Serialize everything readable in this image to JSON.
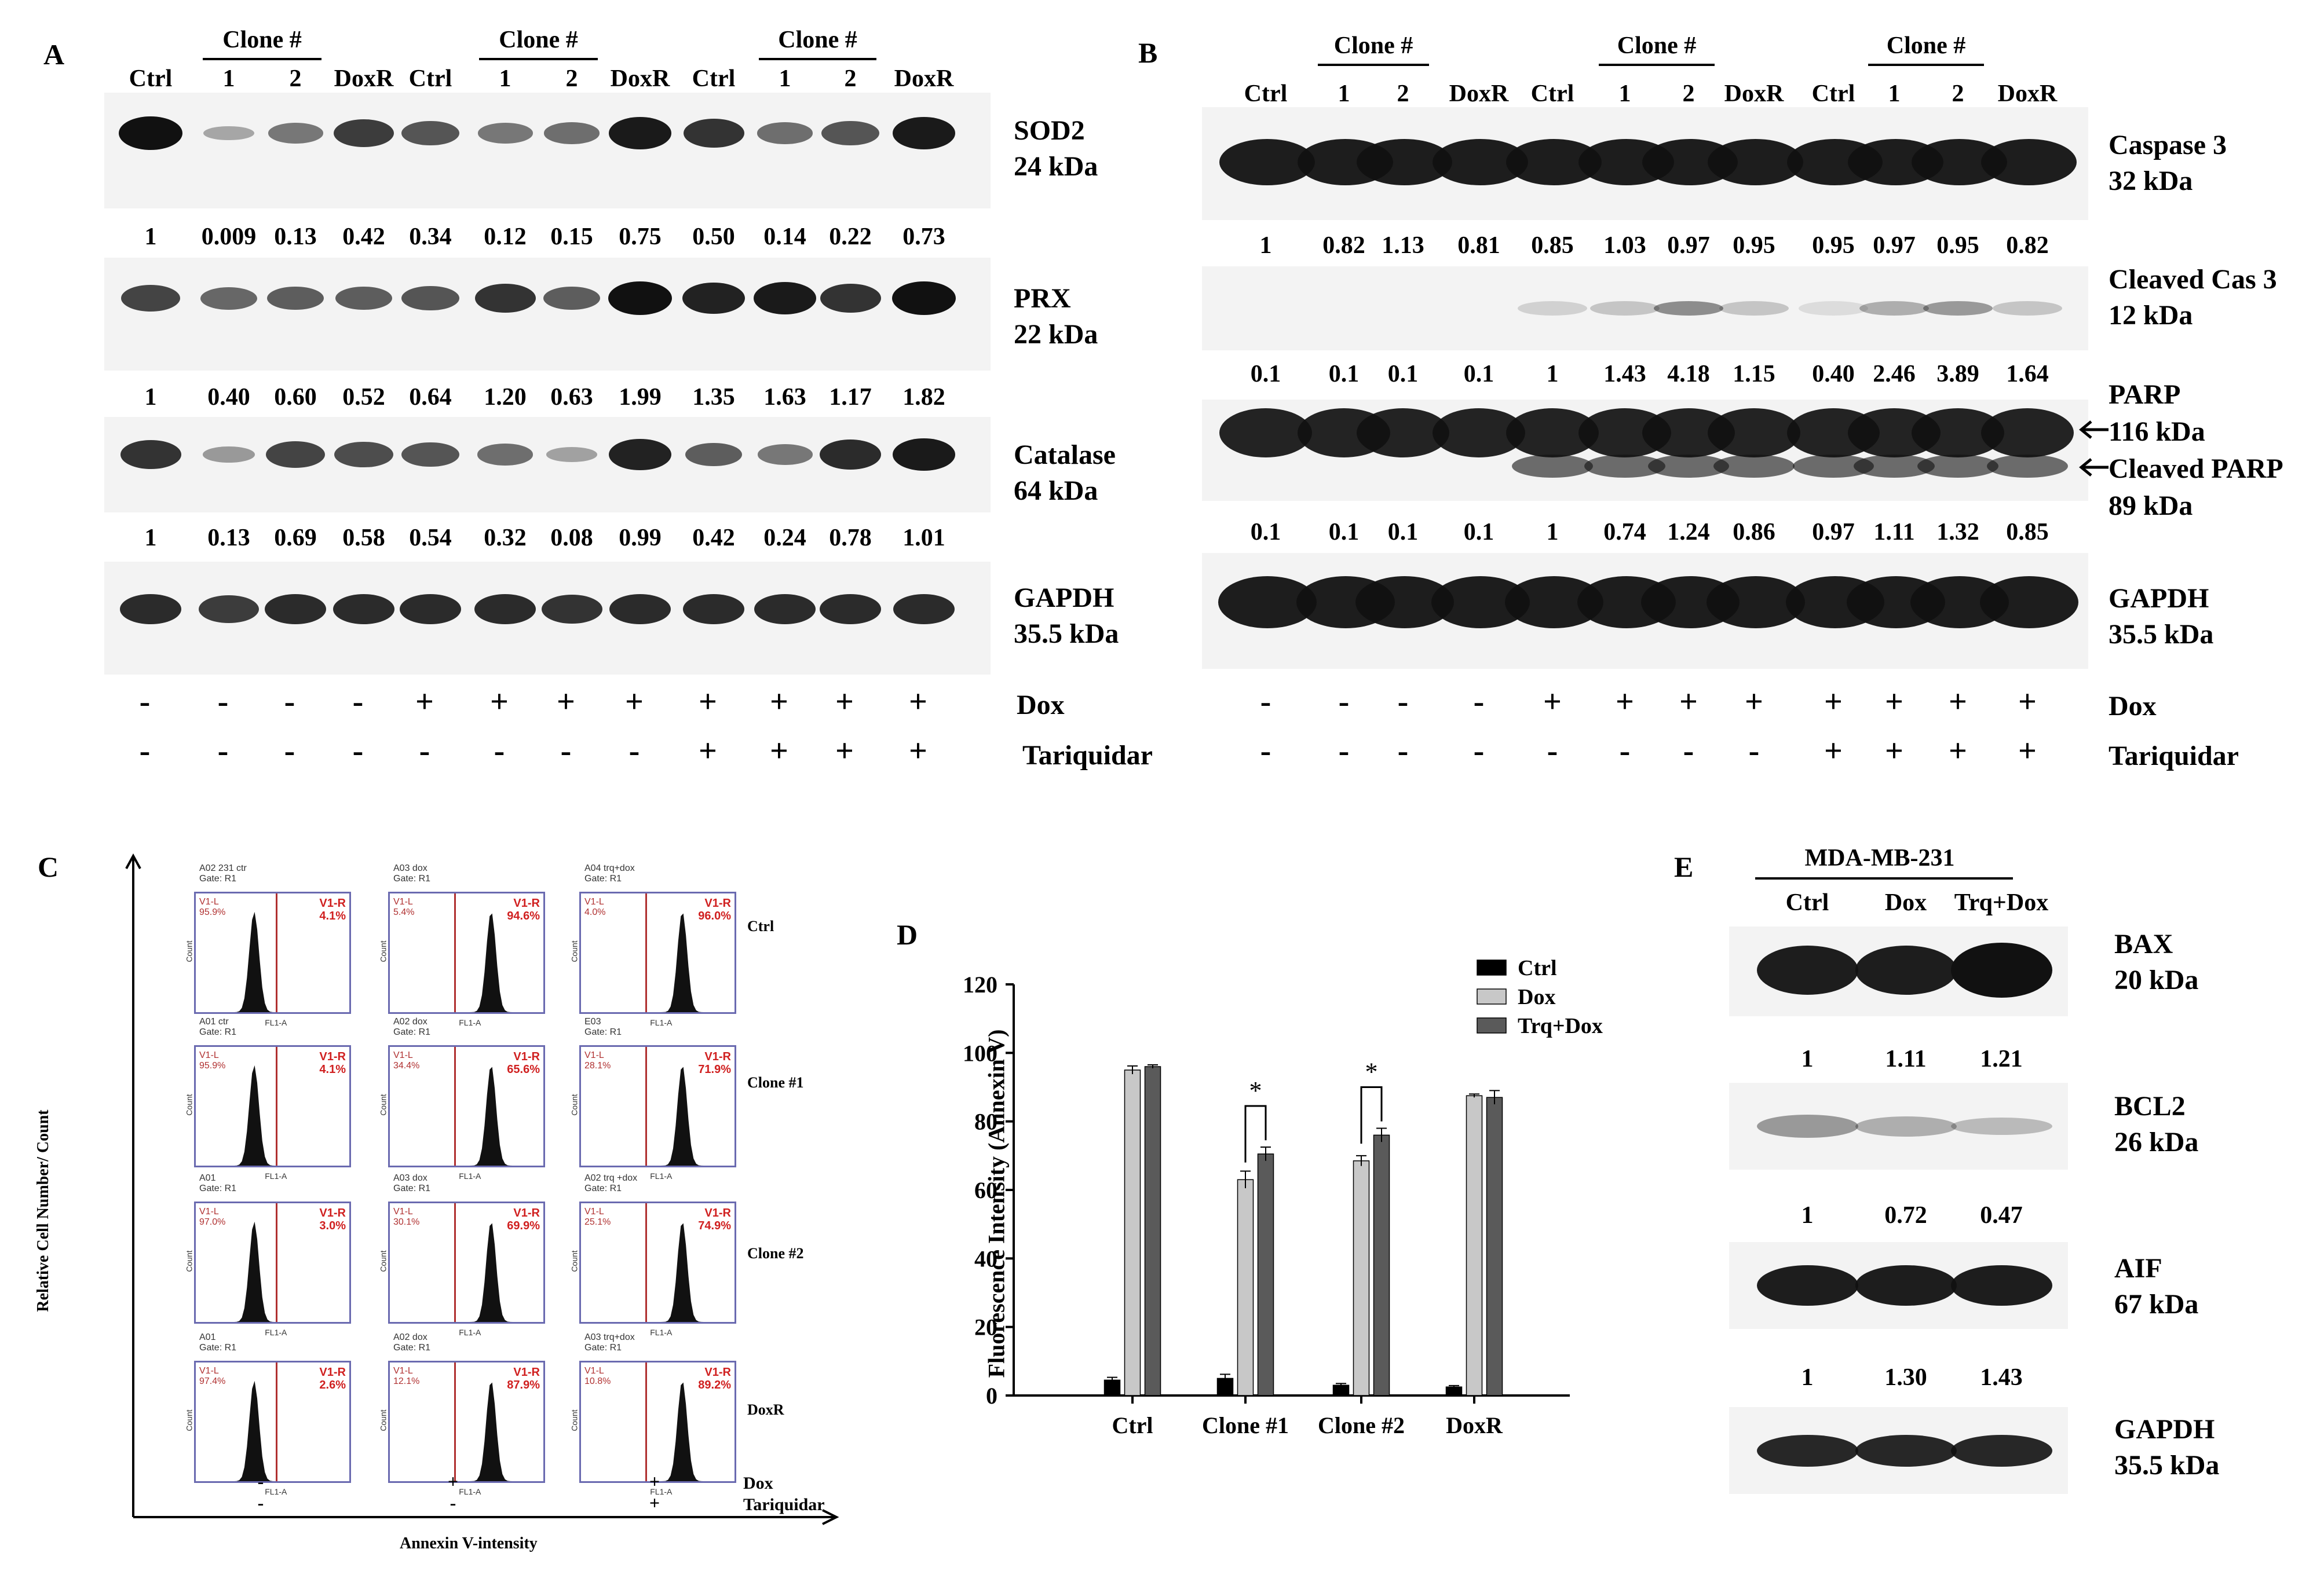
{
  "panelA": {
    "label": "A",
    "header": [
      "Ctrl",
      "1",
      "2",
      "DoxR",
      "Ctrl",
      "1",
      "2",
      "DoxR",
      "Ctrl",
      "1",
      "2",
      "DoxR"
    ],
    "clone_label": "Clone #",
    "markers": [
      {
        "name": "SOD2",
        "kda": "24  kDa",
        "values": [
          "1",
          "0.009",
          "0.13",
          "0.42",
          "0.34",
          "0.12",
          "0.15",
          "0.75",
          "0.50",
          "0.14",
          "0.22",
          "0.73"
        ]
      },
      {
        "name": "PRX",
        "kda": "22  kDa",
        "values": [
          "1",
          "0.40",
          "0.60",
          "0.52",
          "0.64",
          "1.20",
          "0.63",
          "1.99",
          "1.35",
          "1.63",
          "1.17",
          "1.82"
        ]
      },
      {
        "name": "Catalase",
        "kda": "64 kDa",
        "values": [
          "1",
          "0.13",
          "0.69",
          "0.58",
          "0.54",
          "0.32",
          "0.08",
          "0.99",
          "0.42",
          "0.24",
          "0.78",
          "1.01"
        ]
      },
      {
        "name": "GAPDH",
        "kda": "35.5 kDa",
        "values": []
      }
    ],
    "dox_label": "Dox",
    "trq_label": "Tariquidar",
    "dox": [
      "-",
      "-",
      "-",
      "-",
      "+",
      "+",
      "+",
      "+",
      "+",
      "+",
      "+",
      "+"
    ],
    "trq": [
      "-",
      "-",
      "-",
      "-",
      "-",
      "-",
      "-",
      "-",
      "+",
      "+",
      "+",
      "+"
    ]
  },
  "panelB": {
    "label": "B",
    "header": [
      "Ctrl",
      "1",
      "2",
      "DoxR",
      "Ctrl",
      "1",
      "2",
      "DoxR",
      "Ctrl",
      "1",
      "2",
      "DoxR"
    ],
    "clone_label": "Clone #",
    "casp3": {
      "name": "Caspase 3",
      "kda": "32 kDa",
      "values": [
        "1",
        "0.82",
        "1.13",
        "0.81",
        "0.85",
        "1.03",
        "0.97",
        "0.95",
        "0.95",
        "0.97",
        "0.95",
        "0.82"
      ]
    },
    "clcas3": {
      "name": "Cleaved Cas 3",
      "kda": "12 kDa",
      "values": [
        "0.1",
        "0.1",
        "0.1",
        "0.1",
        "1",
        "1.43",
        "4.18",
        "1.15",
        "0.40",
        "2.46",
        "3.89",
        "1.64"
      ]
    },
    "parp": {
      "name": "PARP",
      "kda116": "116 kDa",
      "cleaved": "Cleaved PARP",
      "kda89": "89 kDa",
      "values": [
        "0.1",
        "0.1",
        "0.1",
        "0.1",
        "1",
        "0.74",
        "1.24",
        "0.86",
        "0.97",
        "1.11",
        "1.32",
        "0.85"
      ]
    },
    "gapdh": {
      "name": "GAPDH",
      "kda": "35.5 kDa"
    },
    "dox_label": "Dox",
    "trq_label": "Tariquidar",
    "dox": [
      "-",
      "-",
      "-",
      "-",
      "+",
      "+",
      "+",
      "+",
      "+",
      "+",
      "+",
      "+"
    ],
    "trq": [
      "-",
      "-",
      "-",
      "-",
      "-",
      "-",
      "-",
      "-",
      "+",
      "+",
      "+",
      "+"
    ]
  },
  "panelC": {
    "label": "C",
    "ylabel": "Relative Cell Number/ Count",
    "xlabel": "Annexin V-intensity",
    "rows": [
      "Ctrl",
      "Clone #1",
      "Clone #2",
      "DoxR"
    ],
    "headers": [
      [
        "A02 231 ctr\nGate: R1",
        "A03 dox\nGate: R1",
        "A04 trq+dox\nGate: R1"
      ],
      [
        "A01 ctr\nGate: R1",
        "A02 dox\nGate: R1",
        "E03\nGate: R1"
      ],
      [
        "A01\nGate: R1",
        "A03 dox\nGate: R1",
        "A02 trq +dox\nGate: R1"
      ],
      [
        "A01\nGate: R1",
        "A02 dox\nGate: R1",
        "A03 trq+dox\nGate: R1"
      ]
    ],
    "left_pct": [
      [
        "95.9%",
        "5.4%",
        "4.0%"
      ],
      [
        "95.9%",
        "34.4%",
        "28.1%"
      ],
      [
        "97.0%",
        "30.1%",
        "25.1%"
      ],
      [
        "97.4%",
        "12.1%",
        "10.8%"
      ]
    ],
    "right_pct": [
      [
        "4.1%",
        "94.6%",
        "96.0%"
      ],
      [
        "4.1%",
        "65.6%",
        "71.9%"
      ],
      [
        "3.0%",
        "69.9%",
        "74.9%"
      ],
      [
        "2.6%",
        "87.9%",
        "89.2%"
      ]
    ],
    "gate_label": "V1-R",
    "left_label": "V1-L",
    "axis_x": "FL1-A",
    "axis_y": "Count",
    "dox_label": "Dox",
    "trq_label": "Tariquidar",
    "dox": [
      "-",
      "+",
      "+"
    ],
    "trq": [
      "-",
      "-",
      "+"
    ]
  },
  "panelD": {
    "label": "D",
    "chart_data": {
      "type": "bar",
      "categories": [
        "Ctrl",
        "Clone #1",
        "Clone #2",
        "DoxR"
      ],
      "series": [
        {
          "name": "Ctrl",
          "values": [
            4.5,
            5.0,
            3.0,
            2.5
          ],
          "errors": [
            0.8,
            1.2,
            0.5,
            0.4
          ],
          "color": "#000000"
        },
        {
          "name": "Dox",
          "values": [
            95,
            63,
            68.5,
            87.5
          ],
          "errors": [
            1.2,
            2.5,
            1.5,
            0.5
          ],
          "color": "#c8c8c8"
        },
        {
          "name": "Trq+Dox",
          "values": [
            96,
            70.5,
            76,
            87
          ],
          "errors": [
            0.5,
            2.0,
            2.0,
            2.0
          ],
          "color": "#5a5a5a"
        }
      ],
      "ylabel": "Fluorescence Intensity (Annexin V)",
      "ylim": [
        0,
        120
      ],
      "yticks": [
        "0",
        "20",
        "40",
        "60",
        "80",
        "100",
        "120"
      ],
      "significance": [
        "*",
        "*"
      ],
      "legend": "top-right"
    }
  },
  "panelE": {
    "label": "E",
    "cellline": "MDA-MB-231",
    "header": [
      "Ctrl",
      "Dox",
      "Trq+Dox"
    ],
    "markers": [
      {
        "name": "BAX",
        "kda": "20 kDa",
        "values": [
          "1",
          "1.11",
          "1.21"
        ]
      },
      {
        "name": "BCL2",
        "kda": "26 kDa",
        "values": [
          "1",
          "0.72",
          "0.47"
        ]
      },
      {
        "name": "AIF",
        "kda": "67 kDa",
        "values": [
          "1",
          "1.30",
          "1.43"
        ]
      },
      {
        "name": "GAPDH",
        "kda": "35.5 kDa",
        "values": []
      }
    ]
  }
}
